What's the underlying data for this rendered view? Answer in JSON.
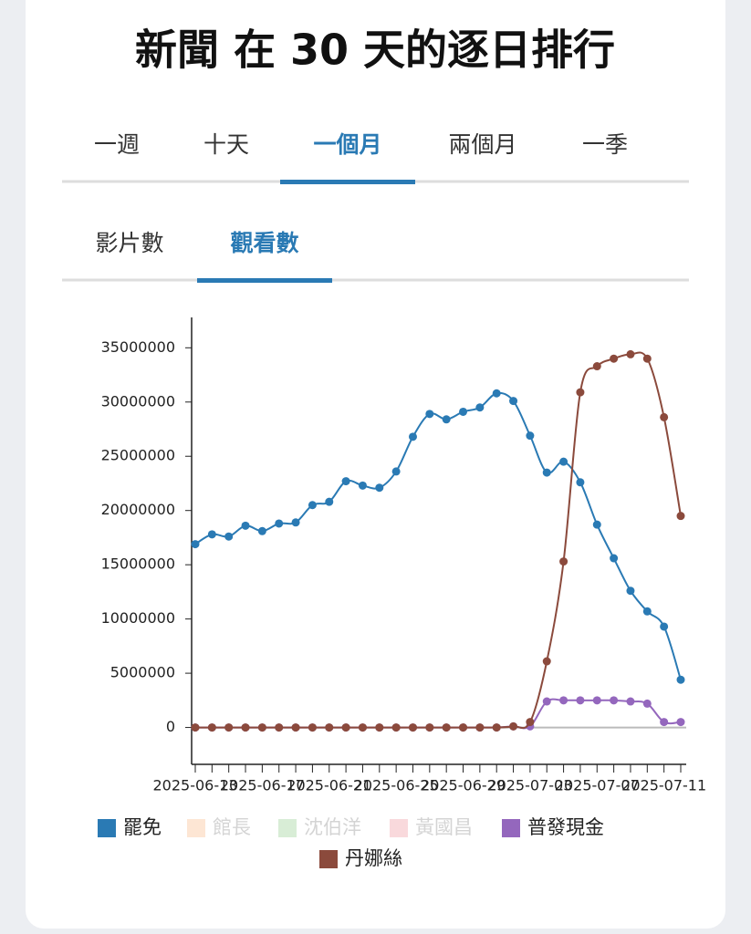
{
  "header": {
    "title": "新聞 在 30 天的逐日排行"
  },
  "tabs": {
    "items": [
      "一週",
      "十天",
      "一個月",
      "兩個月",
      "一季"
    ],
    "active": 2
  },
  "subtabs": {
    "items": [
      "影片數",
      "觀看數"
    ],
    "active": 1
  },
  "chart_data": {
    "type": "line",
    "categories": [
      "2025-06-13",
      null,
      null,
      null,
      "2025-06-17",
      null,
      null,
      null,
      "2025-06-21",
      null,
      null,
      null,
      "2025-06-25",
      null,
      null,
      null,
      "2025-06-29",
      null,
      null,
      null,
      "2025-07-03",
      null,
      null,
      null,
      "2025-07-07",
      null,
      null,
      null,
      "2025-07-11",
      null
    ],
    "ylim": [
      -3400000,
      37800000
    ],
    "yticks": [
      0,
      5000000,
      10000000,
      15000000,
      20000000,
      25000000,
      30000000,
      35000000
    ],
    "grid": false,
    "series": [
      {
        "name": "罷免",
        "color": "#2a7ab4",
        "values": [
          16900000,
          17800000,
          17600000,
          18600000,
          18100000,
          18800000,
          18900000,
          20500000,
          20800000,
          22700000,
          22300000,
          22100000,
          23600000,
          26800000,
          28900000,
          28400000,
          29100000,
          29500000,
          30800000,
          30100000,
          26900000,
          23500000,
          24500000,
          22600000,
          18700000,
          15600000,
          12600000,
          10700000,
          9300000,
          4400000
        ]
      },
      {
        "name": "館長",
        "color": "#fde6d4",
        "hidden": true
      },
      {
        "name": "沈伯洋",
        "color": "#d8edd6",
        "hidden": true
      },
      {
        "name": "黃國昌",
        "color": "#f9d9dc",
        "hidden": true
      },
      {
        "name": "普發現金",
        "color": "#9467bd",
        "values": [
          0,
          0,
          0,
          0,
          0,
          0,
          0,
          0,
          0,
          0,
          0,
          0,
          0,
          0,
          0,
          0,
          0,
          0,
          0,
          100000,
          100000,
          2400000,
          2500000,
          2500000,
          2500000,
          2500000,
          2400000,
          2200000,
          500000,
          500000
        ]
      },
      {
        "name": "丹娜絲",
        "color": "#8b4a3c",
        "values": [
          0,
          0,
          0,
          0,
          0,
          0,
          0,
          0,
          0,
          0,
          0,
          0,
          0,
          0,
          0,
          0,
          0,
          0,
          0,
          100000,
          500000,
          6100000,
          15300000,
          30900000,
          33300000,
          34000000,
          34400000,
          34000000,
          28600000,
          19500000
        ]
      }
    ]
  }
}
